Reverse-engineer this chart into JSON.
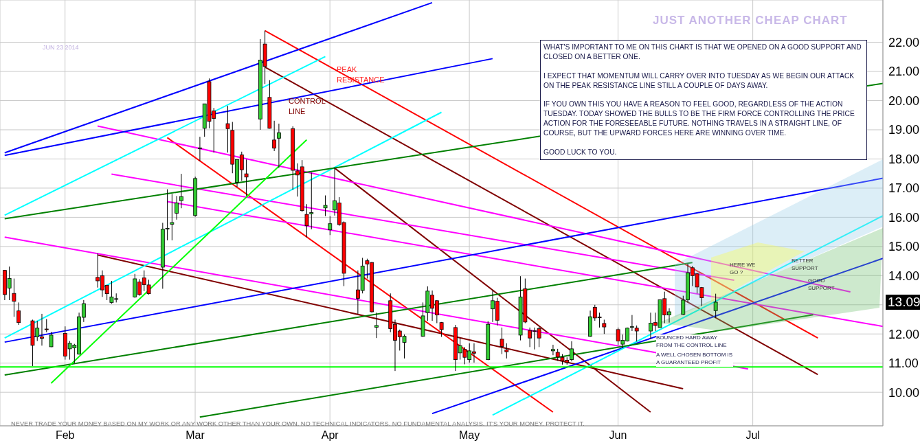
{
  "chart_data": {
    "type": "candlestick",
    "title": "JUST ANOTHER CHEAP CHART",
    "subtitle": "JUN 23 2014",
    "x": [
      "2014-01-21",
      "2014-01-22",
      "2014-01-23",
      "2014-01-24",
      "2014-01-27",
      "2014-01-28",
      "2014-01-29",
      "2014-01-30",
      "2014-01-31",
      "2014-02-03",
      "2014-02-04",
      "2014-02-05",
      "2014-02-06",
      "2014-02-07",
      "2014-02-10",
      "2014-02-11",
      "2014-02-12",
      "2014-02-13",
      "2014-02-14",
      "2014-02-18",
      "2014-02-19",
      "2014-02-20",
      "2014-02-21",
      "2014-02-24",
      "2014-02-25",
      "2014-02-26",
      "2014-02-27",
      "2014-02-28",
      "2014-03-03",
      "2014-03-04",
      "2014-03-05",
      "2014-03-06",
      "2014-03-07",
      "2014-03-10",
      "2014-03-11",
      "2014-03-12",
      "2014-03-13",
      "2014-03-14",
      "2014-03-17",
      "2014-03-18",
      "2014-03-19",
      "2014-03-20",
      "2014-03-21",
      "2014-03-24",
      "2014-03-25",
      "2014-03-26",
      "2014-03-27",
      "2014-03-28",
      "2014-03-31",
      "2014-04-01",
      "2014-04-02",
      "2014-04-03",
      "2014-04-04",
      "2014-04-07",
      "2014-04-08",
      "2014-04-09",
      "2014-04-10",
      "2014-04-11",
      "2014-04-14",
      "2014-04-15",
      "2014-04-16",
      "2014-04-17",
      "2014-04-21",
      "2014-04-22",
      "2014-04-23",
      "2014-04-24",
      "2014-04-25",
      "2014-04-28",
      "2014-04-29",
      "2014-04-30",
      "2014-05-01",
      "2014-05-02",
      "2014-05-05",
      "2014-05-06",
      "2014-05-07",
      "2014-05-08",
      "2014-05-09",
      "2014-05-12",
      "2014-05-13",
      "2014-05-14",
      "2014-05-15",
      "2014-05-16",
      "2014-05-19",
      "2014-05-20",
      "2014-05-21",
      "2014-05-22",
      "2014-05-23",
      "2014-05-27",
      "2014-05-28",
      "2014-05-29",
      "2014-05-30",
      "2014-06-02",
      "2014-06-03",
      "2014-06-04",
      "2014-06-05",
      "2014-06-06",
      "2014-06-09",
      "2014-06-10",
      "2014-06-11",
      "2014-06-12",
      "2014-06-13",
      "2014-06-16",
      "2014-06-17",
      "2014-06-18",
      "2014-06-19",
      "2014-06-20",
      "2014-06-23"
    ],
    "ohlc": [
      [
        14.18,
        14.19,
        13.16,
        13.35
      ],
      [
        13.57,
        14.31,
        13.16,
        13.9
      ],
      [
        13.39,
        13.9,
        12.59,
        13.12
      ],
      [
        12.79,
        13.08,
        12.31,
        12.39
      ],
      [
        12.45,
        12.49,
        10.9,
        11.61
      ],
      [
        11.9,
        12.45,
        11.76,
        12.2
      ],
      [
        11.9,
        12.69,
        11.6,
        11.85
      ],
      [
        12.17,
        12.51,
        12.06,
        12.15
      ],
      [
        11.56,
        12.07,
        11.55,
        11.96
      ],
      [
        12.02,
        12.26,
        11.12,
        11.24
      ],
      [
        11.49,
        11.76,
        11.12,
        11.68
      ],
      [
        11.52,
        11.66,
        11.0,
        11.62
      ],
      [
        11.31,
        12.73,
        11.29,
        12.59
      ],
      [
        12.57,
        13.16,
        12.41,
        13.04
      ],
      [
        13.94,
        14.76,
        13.59,
        13.82
      ],
      [
        14.0,
        14.18,
        13.27,
        13.51
      ],
      [
        13.67,
        13.67,
        13.16,
        13.38
      ],
      [
        13.08,
        13.82,
        13.04,
        13.27
      ],
      [
        13.2,
        13.39,
        13.08,
        13.21
      ],
      [
        13.27,
        14.06,
        13.24,
        13.89
      ],
      [
        13.78,
        13.88,
        13.31,
        13.35
      ],
      [
        13.92,
        14.18,
        13.47,
        13.69
      ],
      [
        13.68,
        13.86,
        13.35,
        13.38
      ],
      [
        14.29,
        15.81,
        13.55,
        15.59
      ],
      [
        15.6,
        16.96,
        15.21,
        15.62
      ],
      [
        15.76,
        16.8,
        15.21,
        15.82
      ],
      [
        16.14,
        16.73,
        15.92,
        16.49
      ],
      [
        16.57,
        17.49,
        16.31,
        16.71
      ],
      [
        16.06,
        17.39,
        16.02,
        17.33
      ],
      [
        18.37,
        18.76,
        17.93,
        18.38
      ],
      [
        19.05,
        19.89,
        18.76,
        19.89
      ],
      [
        20.65,
        20.76,
        19.05,
        19.29
      ],
      [
        19.65,
        19.75,
        18.22,
        19.39
      ],
      [
        19.21,
        19.82,
        18.22,
        19.04
      ],
      [
        18.98,
        19.27,
        17.51,
        17.82
      ],
      [
        17.2,
        17.98,
        17.04,
        17.98
      ],
      [
        18.14,
        18.25,
        17.25,
        17.63
      ],
      [
        17.49,
        17.98,
        16.73,
        17.38
      ],
      [
        19.37,
        22.11,
        19.0,
        21.39
      ],
      [
        21.94,
        22.4,
        20.57,
        21.17
      ],
      [
        20.11,
        20.7,
        19.04,
        19.05
      ],
      [
        18.65,
        19.31,
        18.27,
        18.37
      ],
      [
        18.71,
        19.21,
        17.69,
        18.9
      ],
      [
        19.04,
        19.12,
        16.94,
        17.61
      ],
      [
        17.59,
        17.85,
        16.71,
        17.45
      ],
      [
        17.73,
        17.96,
        16.18,
        16.23
      ],
      [
        16.1,
        16.45,
        15.31,
        15.71
      ],
      [
        16.12,
        17.53,
        15.59,
        16.16
      ],
      [
        16.32,
        16.75,
        16.04,
        16.41
      ],
      [
        15.57,
        16.04,
        15.39,
        15.78
      ],
      [
        16.25,
        17.71,
        16.06,
        16.57
      ],
      [
        16.49,
        16.69,
        15.71,
        15.75
      ],
      [
        15.82,
        15.86,
        13.64,
        14.08
      ],
      [
        13.51,
        14.18,
        12.69,
        13.22
      ],
      [
        13.49,
        14.61,
        13.39,
        14.33
      ],
      [
        14.51,
        14.58,
        13.9,
        14.4
      ],
      [
        14.45,
        14.47,
        12.73,
        12.76
      ],
      [
        12.23,
        12.73,
        11.86,
        12.29
      ],
      [
        13.14,
        13.39,
        12.06,
        12.18
      ],
      [
        12.33,
        12.49,
        10.73,
        11.78
      ],
      [
        12.1,
        12.15,
        11.43,
        11.9
      ],
      [
        11.71,
        11.98,
        11.16,
        11.92
      ],
      [
        11.92,
        13.08,
        11.9,
        12.62
      ],
      [
        12.73,
        13.63,
        12.45,
        13.47
      ],
      [
        13.33,
        13.49,
        12.45,
        12.88
      ],
      [
        13.14,
        13.16,
        12.37,
        12.65
      ],
      [
        12.39,
        12.41,
        11.9,
        12.15
      ],
      [
        12.22,
        12.31,
        10.73,
        11.12
      ],
      [
        11.35,
        11.86,
        11.12,
        11.6
      ],
      [
        11.47,
        11.55,
        10.96,
        11.2
      ],
      [
        11.12,
        11.68,
        11.02,
        11.42
      ],
      [
        11.39,
        11.68,
        11.02,
        11.34
      ],
      [
        11.12,
        12.44,
        11.1,
        12.33
      ],
      [
        12.86,
        13.49,
        12.41,
        13.14
      ],
      [
        13.12,
        13.24,
        12.29,
        12.47
      ],
      [
        11.82,
        12.22,
        11.31,
        11.57
      ],
      [
        11.45,
        11.68,
        11.16,
        11.39
      ],
      [
        11.96,
        13.98,
        11.78,
        13.27
      ],
      [
        13.55,
        13.9,
        12.37,
        12.41
      ],
      [
        12.12,
        12.22,
        11.55,
        11.86
      ],
      [
        12.11,
        12.22,
        11.47,
        12.09
      ],
      [
        12.18,
        12.25,
        11.55,
        11.86
      ],
      [
        11.42,
        11.63,
        11.27,
        11.47
      ],
      [
        11.37,
        11.49,
        11.08,
        11.21
      ],
      [
        11.2,
        11.31,
        10.95,
        11.08
      ],
      [
        11.1,
        11.2,
        10.95,
        11.02
      ],
      [
        11.12,
        11.75,
        11.06,
        11.49
      ],
      [
        11.92,
        12.8,
        11.9,
        12.59
      ],
      [
        12.91,
        13.0,
        12.45,
        12.55
      ],
      [
        12.58,
        12.73,
        12.22,
        12.57
      ],
      [
        12.36,
        12.49,
        12.0,
        12.24
      ],
      [
        12.15,
        12.22,
        11.63,
        11.76
      ],
      [
        11.65,
        11.98,
        11.51,
        11.78
      ],
      [
        11.76,
        12.22,
        11.74,
        12.2
      ],
      [
        12.24,
        12.65,
        12.1,
        12.25
      ],
      [
        12.2,
        12.29,
        11.74,
        12.1
      ],
      [
        12.1,
        12.73,
        11.82,
        12.37
      ],
      [
        12.39,
        12.73,
        12.1,
        12.29
      ],
      [
        12.22,
        13.17,
        12.22,
        13.17
      ],
      [
        13.21,
        13.45,
        12.37,
        12.65
      ],
      [
        12.65,
        12.88,
        12.39,
        12.76
      ],
      [
        12.67,
        13.31,
        12.65,
        13.16
      ],
      [
        13.17,
        14.41,
        13.08,
        14.1
      ],
      [
        14.27,
        14.33,
        13.64,
        14.0
      ],
      [
        14.06,
        14.1,
        13.39,
        13.61
      ],
      [
        13.59,
        13.61,
        12.96,
        13.24
      ],
      [
        12.8,
        13.38,
        12.55,
        13.09
      ]
    ],
    "xlim": [
      "2014-01-20",
      "2014-07-29"
    ],
    "xticks": [
      {
        "value": "2014-02-03",
        "label": "Feb"
      },
      {
        "value": "2014-03-03",
        "label": "Mar"
      },
      {
        "value": "2014-04-01",
        "label": "Apr"
      },
      {
        "value": "2014-05-01",
        "label": "May"
      },
      {
        "value": "2014-06-02",
        "label": "Jun"
      },
      {
        "value": "2014-07-01",
        "label": "Jul"
      }
    ],
    "ylim": [
      8.85,
      23.45
    ],
    "yticks": [
      {
        "value": 10,
        "label": "10.00"
      },
      {
        "value": 11,
        "label": "11.00"
      },
      {
        "value": 12,
        "label": "12.00"
      },
      {
        "value": 13,
        "label": null
      },
      {
        "value": 14,
        "label": "14.00"
      },
      {
        "value": 15,
        "label": "15.00"
      },
      {
        "value": 16,
        "label": "16.00"
      },
      {
        "value": 17,
        "label": "17.00"
      },
      {
        "value": 18,
        "label": "18.00"
      },
      {
        "value": 19,
        "label": "19.00"
      },
      {
        "value": 20,
        "label": "20.00"
      },
      {
        "value": 21,
        "label": "21.00"
      },
      {
        "value": 22,
        "label": "22.00"
      }
    ],
    "grid": true,
    "series": [
      {
        "type": "line",
        "color": "#ff0000",
        "x": [
          "2014-03-18",
          "2014-07-15"
        ],
        "values": [
          22.4,
          11.86
        ]
      },
      {
        "type": "line",
        "color": "#800000",
        "x": [
          "2014-03-18",
          "2014-07-15"
        ],
        "values": [
          21.15,
          10.61
        ]
      },
      {
        "type": "line",
        "color": "#800000",
        "x": [
          "2014-02-10",
          "2014-06-16"
        ],
        "values": [
          14.71,
          10.12
        ]
      },
      {
        "type": "line",
        "color": "#800000",
        "x": [
          "2014-04-02",
          "2014-06-09"
        ],
        "values": [
          17.69,
          9.32
        ]
      },
      {
        "type": "line",
        "color": "#ff0000",
        "x": [
          "2014-02-25",
          "2014-05-19"
        ],
        "values": [
          18.73,
          9.32
        ]
      },
      {
        "type": "line",
        "color": "#ff00ff",
        "x": [
          "2014-02-10",
          "2014-07-22"
        ],
        "values": [
          19.13,
          13.44
        ]
      },
      {
        "type": "line",
        "color": "#ff00ff",
        "x": [
          "2014-02-13",
          "2014-06-27"
        ],
        "values": [
          17.48,
          13.84
        ]
      },
      {
        "type": "line",
        "color": "#ff00ff",
        "x": [
          "2014-01-21",
          "2014-06-30"
        ],
        "values": [
          15.32,
          10.8
        ]
      },
      {
        "type": "line",
        "color": "#ff00ff",
        "x": [
          "2014-02-25",
          "2014-07-29"
        ],
        "values": [
          16.54,
          12.26
        ]
      },
      {
        "type": "line",
        "color": "#0000ff",
        "x": [
          "2014-01-21",
          "2014-05-06"
        ],
        "values": [
          18.12,
          21.44
        ]
      },
      {
        "type": "line",
        "color": "#0000ff",
        "x": [
          "2014-01-21",
          "2014-07-29"
        ],
        "values": [
          11.72,
          17.34
        ]
      },
      {
        "type": "line",
        "color": "#0000ff",
        "x": [
          "2014-04-23",
          "2014-07-29"
        ],
        "values": [
          9.27,
          14.59
        ]
      },
      {
        "type": "line",
        "color": "#0000ff",
        "x": [
          "2014-01-21",
          "2014-04-23"
        ],
        "values": [
          18.21,
          23.36
        ]
      },
      {
        "type": "line",
        "color": "#00ffff",
        "x": [
          "2014-01-21",
          "2014-03-31"
        ],
        "values": [
          16.07,
          21.51
        ]
      },
      {
        "type": "line",
        "color": "#00ffff",
        "x": [
          "2014-01-21",
          "2014-04-25"
        ],
        "values": [
          11.86,
          19.6
        ]
      },
      {
        "type": "line",
        "color": "#00ffff",
        "x": [
          "2014-05-06",
          "2014-07-29"
        ],
        "values": [
          9.22,
          16.05
        ]
      },
      {
        "type": "line",
        "color": "#008000",
        "x": [
          "2014-03-04",
          "2014-07-14"
        ],
        "values": [
          9.15,
          12.66
        ]
      },
      {
        "type": "line",
        "color": "#008000",
        "x": [
          "2014-01-21",
          "2014-06-18"
        ],
        "values": [
          10.59,
          14.45
        ]
      },
      {
        "type": "line",
        "color": "#008000",
        "x": [
          "2014-01-21",
          "2014-07-29"
        ],
        "values": [
          15.95,
          20.59
        ]
      },
      {
        "type": "line",
        "color": "#00ff00",
        "x": [
          "2014-01-31",
          "2014-03-27"
        ],
        "values": [
          10.31,
          18.66
        ]
      },
      {
        "type": "line",
        "color": "#00ff00",
        "x": [
          "2014-01-20",
          "2014-07-29"
        ],
        "values": [
          10.87,
          10.87
        ]
      }
    ],
    "annotations": [
      "PEAK RESISTANCE",
      "CONTROL LINE",
      "WHAT'S IMPORTANT TO ME ON THIS CHART IS THAT WE OPENED ON A GOOD SUPPORT AND CLOSED ON A BETTER ONE.\n\nI EXPECT THAT MOMENTUM WILL CARRY OVER INTO TUESDAY AS WE BEGIN OUR ATTACK ON THE PEAK RESISTANCE LINE STILL A COUPLE OF DAYS AWAY.\n\nIF YOU OWN THIS YOU HAVE A REASON TO FEEL GOOD, REGARDLESS OF THE ACTION TUESDAY. TODAY SHOWED THE BULLS TO BE THE FIRM FORCE CONTROLLING THE PRICE ACTION FOR THE FORESEEABLE FUTURE. NOTHING TRAVELS IN A STRAIGHT LINE, OF COURSE, BUT THE UPWARD FORCES HERE ARE WINNING OVER TIME.\n\nGOOD LUCK TO YOU.",
      "HERE WE GO ?",
      "BETTER SUPPORT",
      "GOOD SUPPORT",
      "BOUNCED HARD AWAY FROM THE CONTROL LINE",
      "A WELL CHOSEN BOTTOM IS A GUARANTEED PROFIT",
      "NEVER TRADE YOUR MONEY BASED ON MY WORK OR ANY WORK OTHER THAN YOUR OWN. NO TECHNICAL INDICATORS. NO FUNDAMENTAL ANALYSIS. IT'S YOUR MONEY. PROTECT IT.",
      "13.09"
    ]
  }
}
